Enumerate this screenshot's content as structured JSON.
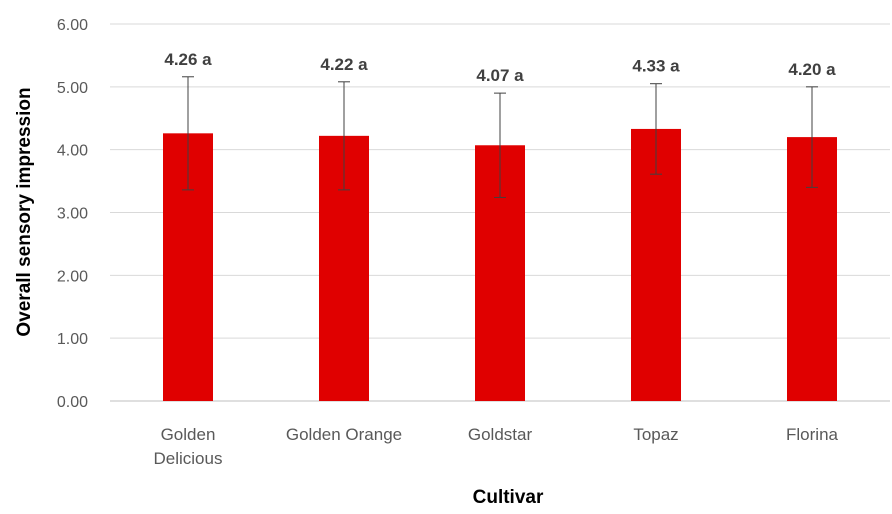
{
  "chart_data": {
    "type": "bar",
    "title": "",
    "xlabel": "Cultivar",
    "ylabel": "Overall sensory impression",
    "categories": [
      [
        "Golden",
        "Delicious"
      ],
      [
        "Golden Orange"
      ],
      [
        "Goldstar"
      ],
      [
        "Topaz"
      ],
      [
        "Florina"
      ]
    ],
    "values": [
      4.26,
      4.22,
      4.07,
      4.33,
      4.2
    ],
    "errors": [
      0.9,
      0.86,
      0.83,
      0.72,
      0.8
    ],
    "data_labels": [
      "4.26 a",
      "4.22 a",
      "4.07 a",
      "4.33 a",
      "4.20 a"
    ],
    "y_ticks": [
      "0.00",
      "1.00",
      "2.00",
      "3.00",
      "4.00",
      "5.00",
      "6.00"
    ],
    "ylim": [
      0,
      6
    ],
    "grid": true,
    "legend": "none",
    "bar_color": "#E00000"
  }
}
